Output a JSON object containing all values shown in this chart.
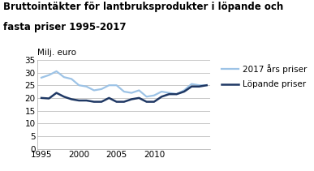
{
  "title_line1": "Bruttointäkter för lantbruksprodukter i löpande och",
  "title_line2": "fasta priser 1995-2017",
  "ylabel": "Milj. euro",
  "years": [
    1995,
    1996,
    1997,
    1998,
    1999,
    2000,
    2001,
    2002,
    2003,
    2004,
    2005,
    2006,
    2007,
    2008,
    2009,
    2010,
    2011,
    2012,
    2013,
    2014,
    2015,
    2016,
    2017
  ],
  "series_2017": [
    28.0,
    29.0,
    30.5,
    28.2,
    27.5,
    25.0,
    24.5,
    23.0,
    23.5,
    25.0,
    25.0,
    22.5,
    22.0,
    23.0,
    20.5,
    21.0,
    22.5,
    22.0,
    21.5,
    23.0,
    25.5,
    25.0,
    25.0
  ],
  "series_lopande": [
    20.0,
    19.8,
    22.0,
    20.5,
    19.5,
    19.0,
    19.0,
    18.5,
    18.5,
    20.0,
    18.5,
    18.5,
    19.5,
    20.0,
    18.5,
    18.5,
    20.5,
    21.5,
    21.5,
    22.5,
    24.5,
    24.5,
    25.0
  ],
  "color_2017": "#9dc3e6",
  "color_lopande": "#1f3864",
  "legend_label_2017": "2017 års priser",
  "legend_label_lopande": "Löpande priser",
  "ylim": [
    0,
    35
  ],
  "yticks": [
    0,
    5,
    10,
    15,
    20,
    25,
    30,
    35
  ],
  "xlim": [
    1994.5,
    2017.5
  ],
  "xticks": [
    1995,
    2000,
    2005,
    2010
  ],
  "grid_color": "#c0c0c0",
  "background_color": "#ffffff",
  "title_fontsize": 8.5,
  "axis_fontsize": 7.5,
  "legend_fontsize": 7.5,
  "linewidth_2017": 1.6,
  "linewidth_lopande": 1.8
}
